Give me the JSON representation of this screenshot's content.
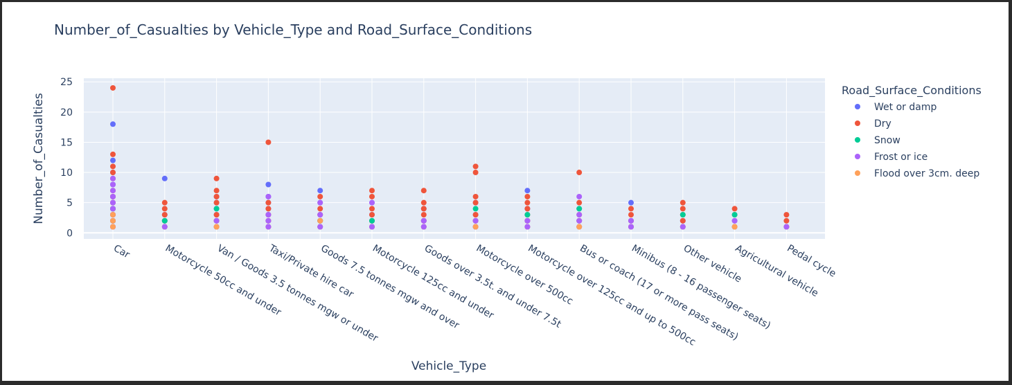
{
  "chart_data": {
    "type": "scatter",
    "title": "Number_of_Casualties by Vehicle_Type and Road_Surface_Conditions",
    "xlabel": "Vehicle_Type",
    "ylabel": "Number_of_Casualties",
    "ylim": [
      -1,
      25.6
    ],
    "yticks": [
      0,
      5,
      10,
      15,
      20,
      25
    ],
    "grid": true,
    "legend_title": "Road_Surface_Conditions",
    "legend_position": "right",
    "categories": [
      "Car",
      "Motorcycle 50cc and under",
      "Van / Goods 3.5 tonnes mgw or under",
      "Taxi/Private hire car",
      "Goods 7.5 tonnes mgw and over",
      "Motorcycle 125cc and under",
      "Goods over 3.5t. and under 7.5t",
      "Motorcycle over 500cc",
      "Motorcycle over 125cc and up to 500cc",
      "Bus or coach (17 or more pass seats)",
      "Minibus (8 - 16 passenger seats)",
      "Other vehicle",
      "Agricultural vehicle",
      "Pedal cycle"
    ],
    "series": [
      {
        "name": "Wet or damp",
        "color": "#636efa",
        "points": [
          [
            "Car",
            18
          ],
          [
            "Car",
            12
          ],
          [
            "Car",
            10
          ],
          [
            "Car",
            8
          ],
          [
            "Car",
            6
          ],
          [
            "Car",
            5
          ],
          [
            "Car",
            4
          ],
          [
            "Car",
            3
          ],
          [
            "Car",
            2
          ],
          [
            "Car",
            1
          ],
          [
            "Motorcycle 50cc and under",
            9
          ],
          [
            "Motorcycle 50cc and under",
            3
          ],
          [
            "Motorcycle 50cc and under",
            2
          ],
          [
            "Motorcycle 50cc and under",
            1
          ],
          [
            "Van / Goods 3.5 tonnes mgw or under",
            6
          ],
          [
            "Van / Goods 3.5 tonnes mgw or under",
            5
          ],
          [
            "Van / Goods 3.5 tonnes mgw or under",
            4
          ],
          [
            "Van / Goods 3.5 tonnes mgw or under",
            3
          ],
          [
            "Van / Goods 3.5 tonnes mgw or under",
            2
          ],
          [
            "Van / Goods 3.5 tonnes mgw or under",
            1
          ],
          [
            "Taxi/Private hire car",
            8
          ],
          [
            "Taxi/Private hire car",
            6
          ],
          [
            "Taxi/Private hire car",
            5
          ],
          [
            "Taxi/Private hire car",
            4
          ],
          [
            "Taxi/Private hire car",
            3
          ],
          [
            "Taxi/Private hire car",
            2
          ],
          [
            "Taxi/Private hire car",
            1
          ],
          [
            "Goods 7.5 tonnes mgw and over",
            7
          ],
          [
            "Goods 7.5 tonnes mgw and over",
            5
          ],
          [
            "Goods 7.5 tonnes mgw and over",
            3
          ],
          [
            "Goods 7.5 tonnes mgw and over",
            2
          ],
          [
            "Goods 7.5 tonnes mgw and over",
            1
          ],
          [
            "Motorcycle 125cc and under",
            5
          ],
          [
            "Motorcycle 125cc and under",
            3
          ],
          [
            "Motorcycle 125cc and under",
            2
          ],
          [
            "Motorcycle 125cc and under",
            1
          ],
          [
            "Goods over 3.5t. and under 7.5t",
            4
          ],
          [
            "Goods over 3.5t. and under 7.5t",
            2
          ],
          [
            "Goods over 3.5t. and under 7.5t",
            1
          ],
          [
            "Motorcycle over 500cc",
            5
          ],
          [
            "Motorcycle over 500cc",
            3
          ],
          [
            "Motorcycle over 500cc",
            2
          ],
          [
            "Motorcycle over 500cc",
            1
          ],
          [
            "Motorcycle over 125cc and up to 500cc",
            7
          ],
          [
            "Motorcycle over 125cc and up to 500cc",
            4
          ],
          [
            "Motorcycle over 125cc and up to 500cc",
            2
          ],
          [
            "Motorcycle over 125cc and up to 500cc",
            1
          ],
          [
            "Bus or coach (17 or more pass seats)",
            4
          ],
          [
            "Bus or coach (17 or more pass seats)",
            2
          ],
          [
            "Bus or coach (17 or more pass seats)",
            1
          ],
          [
            "Minibus (8 - 16 passenger seats)",
            5
          ],
          [
            "Minibus (8 - 16 passenger seats)",
            2
          ],
          [
            "Minibus (8 - 16 passenger seats)",
            1
          ],
          [
            "Other vehicle",
            2
          ],
          [
            "Other vehicle",
            1
          ],
          [
            "Agricultural vehicle",
            2
          ],
          [
            "Agricultural vehicle",
            1
          ],
          [
            "Pedal cycle",
            1
          ]
        ]
      },
      {
        "name": "Dry",
        "color": "#ef553b",
        "points": [
          [
            "Car",
            24
          ],
          [
            "Car",
            13
          ],
          [
            "Car",
            11
          ],
          [
            "Car",
            10
          ],
          [
            "Car",
            9
          ],
          [
            "Car",
            7
          ],
          [
            "Car",
            6
          ],
          [
            "Car",
            5
          ],
          [
            "Car",
            4
          ],
          [
            "Car",
            3
          ],
          [
            "Car",
            2
          ],
          [
            "Car",
            1
          ],
          [
            "Motorcycle 50cc and under",
            5
          ],
          [
            "Motorcycle 50cc and under",
            4
          ],
          [
            "Motorcycle 50cc and under",
            3
          ],
          [
            "Motorcycle 50cc and under",
            2
          ],
          [
            "Motorcycle 50cc and under",
            1
          ],
          [
            "Van / Goods 3.5 tonnes mgw or under",
            9
          ],
          [
            "Van / Goods 3.5 tonnes mgw or under",
            7
          ],
          [
            "Van / Goods 3.5 tonnes mgw or under",
            6
          ],
          [
            "Van / Goods 3.5 tonnes mgw or under",
            5
          ],
          [
            "Van / Goods 3.5 tonnes mgw or under",
            3
          ],
          [
            "Van / Goods 3.5 tonnes mgw or under",
            2
          ],
          [
            "Van / Goods 3.5 tonnes mgw or under",
            1
          ],
          [
            "Taxi/Private hire car",
            15
          ],
          [
            "Taxi/Private hire car",
            5
          ],
          [
            "Taxi/Private hire car",
            4
          ],
          [
            "Taxi/Private hire car",
            3
          ],
          [
            "Taxi/Private hire car",
            2
          ],
          [
            "Taxi/Private hire car",
            1
          ],
          [
            "Goods 7.5 tonnes mgw and over",
            6
          ],
          [
            "Goods 7.5 tonnes mgw and over",
            4
          ],
          [
            "Goods 7.5 tonnes mgw and over",
            3
          ],
          [
            "Goods 7.5 tonnes mgw and over",
            2
          ],
          [
            "Goods 7.5 tonnes mgw and over",
            1
          ],
          [
            "Motorcycle 125cc and under",
            7
          ],
          [
            "Motorcycle 125cc and under",
            6
          ],
          [
            "Motorcycle 125cc and under",
            4
          ],
          [
            "Motorcycle 125cc and under",
            3
          ],
          [
            "Motorcycle 125cc and under",
            2
          ],
          [
            "Motorcycle 125cc and under",
            1
          ],
          [
            "Goods over 3.5t. and under 7.5t",
            7
          ],
          [
            "Goods over 3.5t. and under 7.5t",
            5
          ],
          [
            "Goods over 3.5t. and under 7.5t",
            4
          ],
          [
            "Goods over 3.5t. and under 7.5t",
            3
          ],
          [
            "Goods over 3.5t. and under 7.5t",
            2
          ],
          [
            "Goods over 3.5t. and under 7.5t",
            1
          ],
          [
            "Motorcycle over 500cc",
            11
          ],
          [
            "Motorcycle over 500cc",
            10
          ],
          [
            "Motorcycle over 500cc",
            6
          ],
          [
            "Motorcycle over 500cc",
            5
          ],
          [
            "Motorcycle over 500cc",
            3
          ],
          [
            "Motorcycle over 500cc",
            2
          ],
          [
            "Motorcycle over 500cc",
            1
          ],
          [
            "Motorcycle over 125cc and up to 500cc",
            6
          ],
          [
            "Motorcycle over 125cc and up to 500cc",
            5
          ],
          [
            "Motorcycle over 125cc and up to 500cc",
            4
          ],
          [
            "Motorcycle over 125cc and up to 500cc",
            3
          ],
          [
            "Motorcycle over 125cc and up to 500cc",
            2
          ],
          [
            "Motorcycle over 125cc and up to 500cc",
            1
          ],
          [
            "Bus or coach (17 or more pass seats)",
            10
          ],
          [
            "Bus or coach (17 or more pass seats)",
            5
          ],
          [
            "Bus or coach (17 or more pass seats)",
            3
          ],
          [
            "Bus or coach (17 or more pass seats)",
            2
          ],
          [
            "Bus or coach (17 or more pass seats)",
            1
          ],
          [
            "Minibus (8 - 16 passenger seats)",
            4
          ],
          [
            "Minibus (8 - 16 passenger seats)",
            3
          ],
          [
            "Minibus (8 - 16 passenger seats)",
            2
          ],
          [
            "Minibus (8 - 16 passenger seats)",
            1
          ],
          [
            "Other vehicle",
            5
          ],
          [
            "Other vehicle",
            4
          ],
          [
            "Other vehicle",
            3
          ],
          [
            "Other vehicle",
            2
          ],
          [
            "Other vehicle",
            1
          ],
          [
            "Agricultural vehicle",
            4
          ],
          [
            "Agricultural vehicle",
            3
          ],
          [
            "Agricultural vehicle",
            1
          ],
          [
            "Pedal cycle",
            3
          ],
          [
            "Pedal cycle",
            2
          ],
          [
            "Pedal cycle",
            1
          ]
        ]
      },
      {
        "name": "Snow",
        "color": "#00cc96",
        "points": [
          [
            "Car",
            4
          ],
          [
            "Car",
            2
          ],
          [
            "Motorcycle 50cc and under",
            2
          ],
          [
            "Van / Goods 3.5 tonnes mgw or under",
            4
          ],
          [
            "Goods 7.5 tonnes mgw and over",
            2
          ],
          [
            "Motorcycle 125cc and under",
            2
          ],
          [
            "Motorcycle over 500cc",
            4
          ],
          [
            "Motorcycle over 125cc and up to 500cc",
            3
          ],
          [
            "Bus or coach (17 or more pass seats)",
            4
          ],
          [
            "Other vehicle",
            3
          ],
          [
            "Agricultural vehicle",
            3
          ]
        ]
      },
      {
        "name": "Frost or ice",
        "color": "#ab63fa",
        "points": [
          [
            "Car",
            9
          ],
          [
            "Car",
            8
          ],
          [
            "Car",
            7
          ],
          [
            "Car",
            6
          ],
          [
            "Car",
            5
          ],
          [
            "Car",
            4
          ],
          [
            "Car",
            3
          ],
          [
            "Car",
            2
          ],
          [
            "Car",
            1
          ],
          [
            "Motorcycle 50cc and under",
            1
          ],
          [
            "Van / Goods 3.5 tonnes mgw or under",
            2
          ],
          [
            "Taxi/Private hire car",
            6
          ],
          [
            "Taxi/Private hire car",
            3
          ],
          [
            "Taxi/Private hire car",
            2
          ],
          [
            "Taxi/Private hire car",
            1
          ],
          [
            "Goods 7.5 tonnes mgw and over",
            5
          ],
          [
            "Goods 7.5 tonnes mgw and over",
            3
          ],
          [
            "Goods 7.5 tonnes mgw and over",
            1
          ],
          [
            "Motorcycle 125cc and under",
            5
          ],
          [
            "Motorcycle 125cc and under",
            1
          ],
          [
            "Goods over 3.5t. and under 7.5t",
            2
          ],
          [
            "Goods over 3.5t. and under 7.5t",
            1
          ],
          [
            "Motorcycle over 500cc",
            2
          ],
          [
            "Motorcycle over 500cc",
            1
          ],
          [
            "Motorcycle over 125cc and up to 500cc",
            2
          ],
          [
            "Motorcycle over 125cc and up to 500cc",
            1
          ],
          [
            "Bus or coach (17 or more pass seats)",
            6
          ],
          [
            "Bus or coach (17 or more pass seats)",
            3
          ],
          [
            "Bus or coach (17 or more pass seats)",
            2
          ],
          [
            "Minibus (8 - 16 passenger seats)",
            2
          ],
          [
            "Minibus (8 - 16 passenger seats)",
            1
          ],
          [
            "Other vehicle",
            1
          ],
          [
            "Agricultural vehicle",
            2
          ],
          [
            "Pedal cycle",
            1
          ]
        ]
      },
      {
        "name": "Flood over 3cm. deep",
        "color": "#ffa15a",
        "points": [
          [
            "Car",
            3
          ],
          [
            "Car",
            2
          ],
          [
            "Car",
            1
          ],
          [
            "Van / Goods 3.5 tonnes mgw or under",
            1
          ],
          [
            "Goods 7.5 tonnes mgw and over",
            2
          ],
          [
            "Motorcycle over 500cc",
            1
          ],
          [
            "Bus or coach (17 or more pass seats)",
            1
          ],
          [
            "Agricultural vehicle",
            1
          ]
        ]
      }
    ]
  }
}
